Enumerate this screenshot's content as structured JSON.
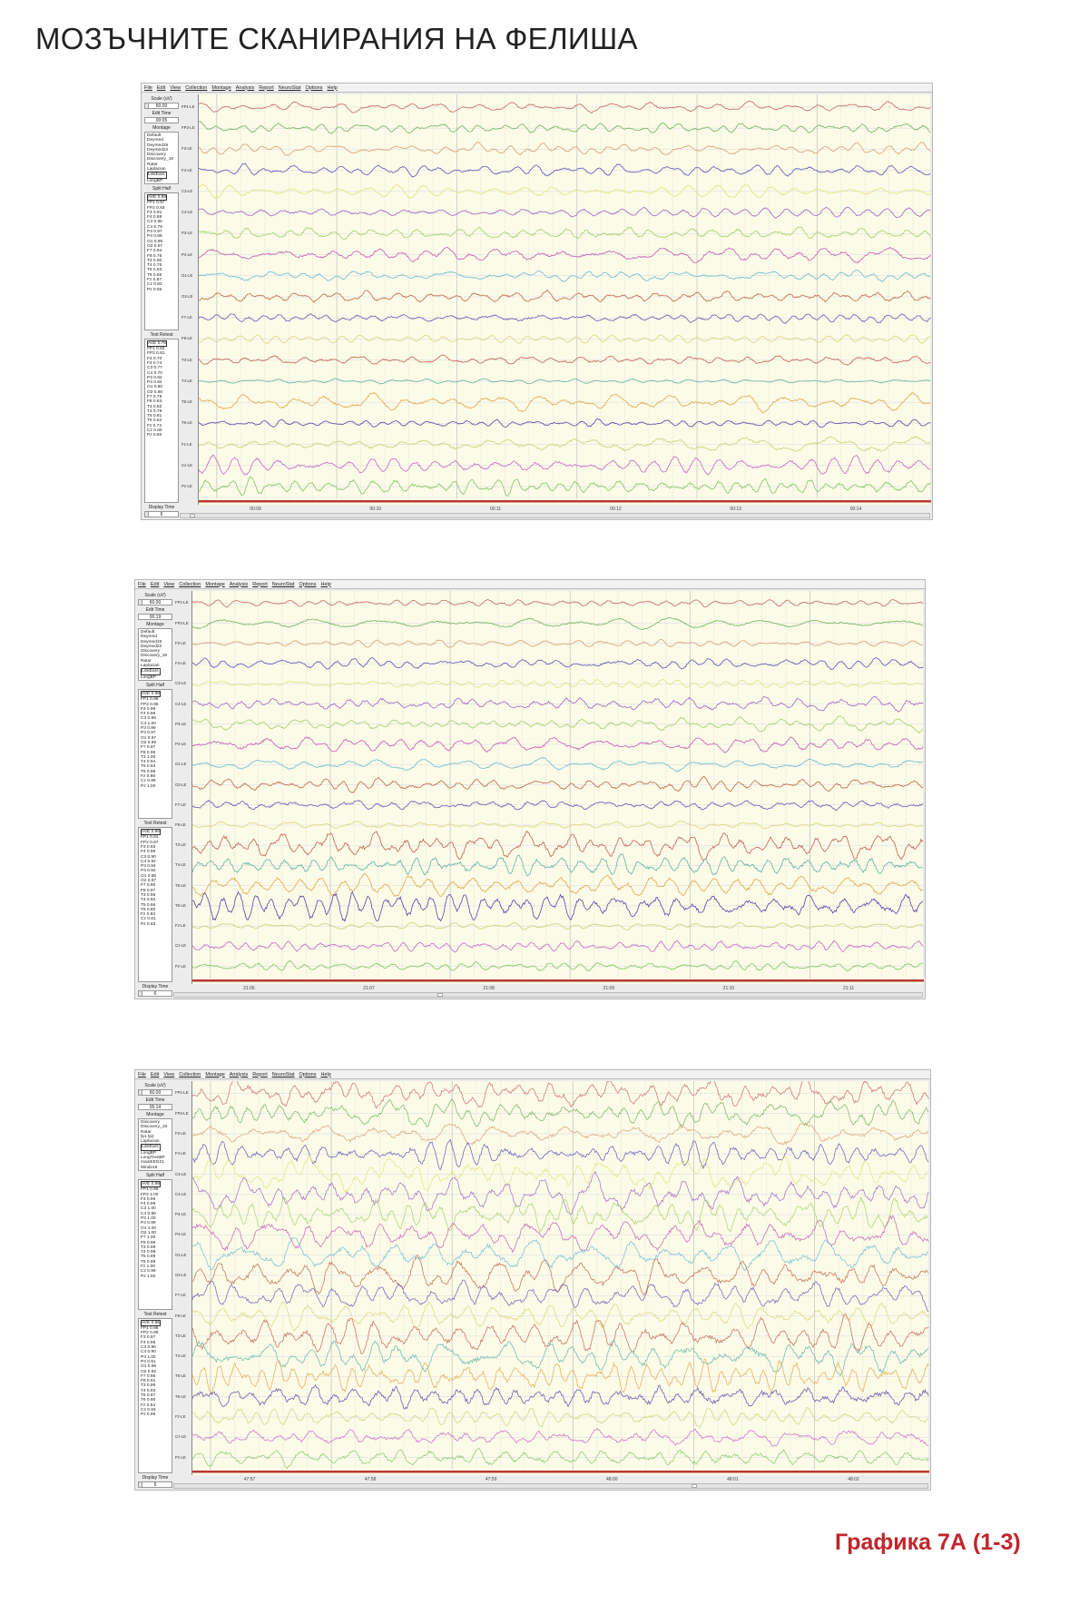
{
  "title": "МОЗЪЧНИТЕ СКАНИРАНИЯ НА ФЕЛИША",
  "caption": "Графика 7А (1-3)",
  "menu": [
    "File",
    "Edit",
    "View",
    "Collection",
    "Montage",
    "Analysis",
    "Report",
    "NeuroStat",
    "Options",
    "Help"
  ],
  "labels": {
    "scale": "Scale (uV)",
    "edit_time": "Edit Time",
    "montage": "Montage",
    "split_half": "Split Half",
    "test_retest": "Test Retest",
    "display_time": "Display Time"
  },
  "channels": [
    "FP1-LE",
    "FP2-LE",
    "F3-LE",
    "F4-LE",
    "C3-LE",
    "C4-LE",
    "P3-LE",
    "P4-LE",
    "O1-LE",
    "O2-LE",
    "F7-LE",
    "F8-LE",
    "T3-LE",
    "T4-LE",
    "T5-LE",
    "T6-LE",
    "Fz-LE",
    "Cz-LE",
    "Pz-LE"
  ],
  "channel_colors": [
    "#c9676a",
    "#74b062",
    "#d6a078",
    "#5a55b5",
    "#e4e27a",
    "#a066c4",
    "#a4d06a",
    "#c659b4",
    "#6cbcd2",
    "#c0664a",
    "#6a58b4",
    "#dcd47a",
    "#c46052",
    "#62b4a4",
    "#e0a84a",
    "#5546a6",
    "#c4d478",
    "#c866c8",
    "#84c466"
  ],
  "panels": [
    {
      "scale": "60.00",
      "edit_time": "00:05",
      "display_time": "6",
      "montage": [
        "Default",
        "Deymed",
        "Deymed19",
        "Deymed22",
        "Discovery",
        "Discovery_19",
        "Ratar",
        "Laplacian",
        "LinkEars",
        "LongBP"
      ],
      "montage_selected": "LinkEars",
      "split_half": [
        "AVE 0.89",
        "FP1 0.97",
        "FP2 0.93",
        "F3 0.91",
        "F4 0.89",
        "C3 0.85",
        "C4 0.79",
        "P3 0.97",
        "P4 0.89",
        "O1 0.99",
        "O2 0.97",
        "F7 0.94",
        "F8 0.76",
        "T3 0.90",
        "T4 0.76",
        "T5 0.93",
        "T6 0.85",
        "Fz 0.87",
        "Cz 0.83",
        "Pz 0.95"
      ],
      "test_retest": [
        "AVE 0.78",
        "FP1 0.83",
        "FP2 0.81",
        "F3 0.70",
        "F4 0.74",
        "C3 0.77",
        "C4 0.70",
        "P3 0.82",
        "P4 0.82",
        "O1 0.80",
        "O2 0.86",
        "F7 0.78",
        "F8 0.83",
        "T3 0.82",
        "T4 0.79",
        "T5 0.81",
        "T6 0.82",
        "Fz 0.73",
        "Cz 0.60",
        "Pz 0.80"
      ],
      "times": [
        "00:09",
        "00:10",
        "00:11",
        "00:12",
        "00:13",
        "00:14"
      ]
    },
    {
      "scale": "60.00",
      "edit_time": "00:19",
      "display_time": "6",
      "montage": [
        "Default",
        "Deymed",
        "Deymed19",
        "Deymed22",
        "Discovery",
        "Discovery_19",
        "Ratar",
        "Laplacian",
        "LinkEars",
        "LongBP"
      ],
      "montage_selected": "LinkEars",
      "split_half": [
        "AVE 0.98",
        "FP1 0.98",
        "FP2 0.96",
        "F3 0.99",
        "F4 0.99",
        "C3 0.99",
        "C4 1.00",
        "P3 0.99",
        "P4 0.97",
        "O1 0.97",
        "O2 0.99",
        "F7 0.97",
        "F8 0.96",
        "T3 1.00",
        "T4 0.94",
        "T5 0.93",
        "T6 0.96",
        "Fz 0.98",
        "Cz 0.99",
        "Pz 1.00"
      ],
      "test_retest": [
        "AVE 0.90",
        "FP1 0.91",
        "FP2 0.87",
        "F3 0.93",
        "F4 0.95",
        "C3 0.90",
        "C4 0.92",
        "P3 0.94",
        "P4 0.92",
        "O1 0.85",
        "O2 0.87",
        "F7 0.90",
        "F8 0.97",
        "T3 0.96",
        "T4 0.92",
        "T5 0.66",
        "T6 0.80",
        "Fz 0.93",
        "Cz 0.81",
        "Pz 0.93"
      ],
      "times": [
        "21:06",
        "21:07",
        "21:08",
        "21:09",
        "21:10",
        "21:11"
      ]
    },
    {
      "scale": "60.00",
      "edit_time": "05:14",
      "display_time": "6",
      "montage": [
        "Discovery",
        "Discovery_19",
        "Ratar",
        "fp1 fp2",
        "Laplacian",
        "LinkEars",
        "LongBP",
        "LongTranBP",
        "mainEEG21",
        "Mindo16"
      ],
      "montage_selected": "LinkEars",
      "split_half": [
        "AVE 0.99",
        "FP1 0.99",
        "FP2 1.00",
        "F3 0.99",
        "F4 0.99",
        "C3 1.00",
        "C4 0.99",
        "P3 1.00",
        "P4 0.99",
        "O1 1.00",
        "O2 1.00",
        "F7 1.00",
        "F8 0.99",
        "T3 0.99",
        "T4 0.98",
        "T5 0.99",
        "T6 0.99",
        "Fz 1.00",
        "Cz 0.99",
        "Pz 1.00"
      ],
      "test_retest": [
        "AVE 0.95",
        "FP1 0.98",
        "FP2 0.99",
        "F3 0.97",
        "F4 0.95",
        "C3 0.96",
        "C4 0.90",
        "P3 1.00",
        "P4 0.91",
        "O1 0.99",
        "O2 0.92",
        "F7 0.96",
        "F8 0.91",
        "T3 0.96",
        "T4 0.93",
        "T5 0.97",
        "T6 0.90",
        "Fz 0.94",
        "Cz 0.93",
        "Pz 0.96"
      ],
      "times": [
        "47:57",
        "47:58",
        "47:59",
        "48:00",
        "48:01",
        "48:02"
      ]
    }
  ]
}
